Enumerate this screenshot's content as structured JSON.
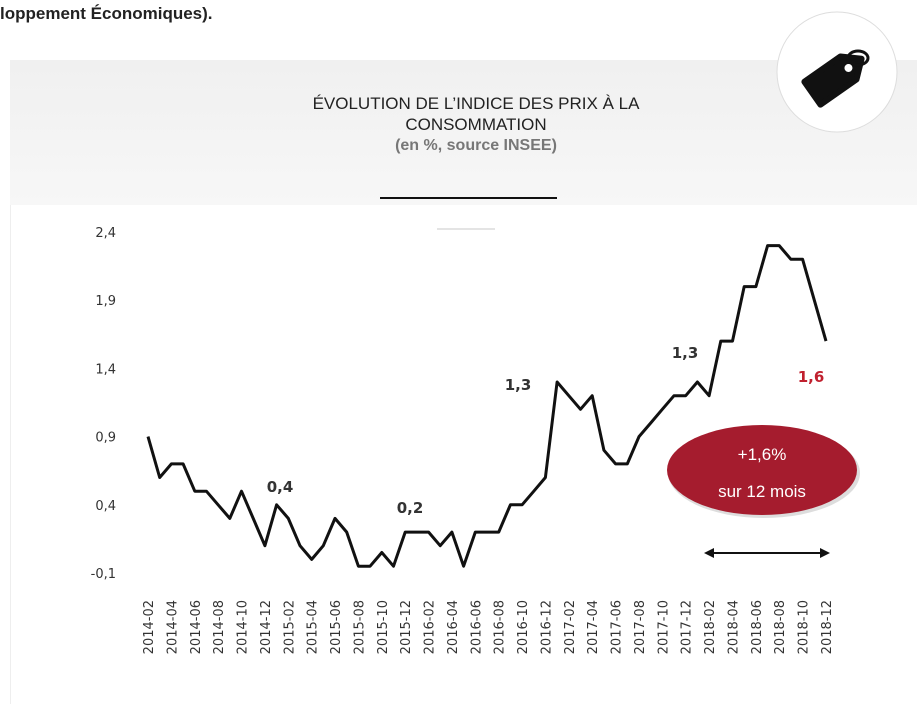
{
  "intro_text": "loppement Économiques).",
  "chart_data": {
    "type": "line",
    "title": "ÉVOLUTION DE L’INDICE DES PRIX À LA CONSOMMATION",
    "subtitle": "(en %, source INSEE)",
    "categories": [
      "2014-02",
      null,
      "2014-04",
      null,
      "2014-06",
      null,
      "2014-08",
      null,
      "2014-10",
      null,
      "2014-12",
      null,
      "2015-02",
      null,
      "2015-04",
      null,
      "2015-06",
      null,
      "2015-08",
      null,
      "2015-10",
      null,
      "2015-12",
      null,
      "2016-02",
      null,
      "2016-04",
      null,
      "2016-06",
      null,
      "2016-08",
      null,
      "2016-10",
      null,
      "2016-12",
      null,
      "2017-02",
      null,
      "2017-04",
      null,
      "2017-06",
      null,
      "2017-08",
      null,
      "2017-10",
      null,
      "2017-12",
      null,
      "2018-02",
      null,
      "2018-04",
      null,
      "2018-06",
      null,
      "2018-08",
      null,
      "2018-10",
      null,
      "2018-12"
    ],
    "values": [
      0.9,
      0.6,
      0.7,
      0.7,
      0.5,
      0.5,
      0.4,
      0.3,
      0.5,
      0.3,
      0.1,
      0.4,
      0.3,
      0.1,
      0.0,
      0.1,
      0.3,
      0.2,
      -0.05,
      -0.05,
      0.05,
      -0.05,
      0.2,
      0.2,
      0.2,
      0.1,
      0.2,
      -0.05,
      0.2,
      0.2,
      0.2,
      0.4,
      0.4,
      0.5,
      0.6,
      1.3,
      1.2,
      1.1,
      1.2,
      0.8,
      0.7,
      0.7,
      0.9,
      1.0,
      1.1,
      1.2,
      1.2,
      1.3,
      1.2,
      1.6,
      1.6,
      2.0,
      2.0,
      2.3,
      2.3,
      2.2,
      2.2,
      1.9,
      1.6
    ],
    "color": "#111111",
    "ylim": [
      -0.1,
      2.4
    ],
    "yticks": [
      {
        "value": -0.1,
        "label": "-0,1"
      },
      {
        "value": 0.4,
        "label": "0,4"
      },
      {
        "value": 0.9,
        "label": "0,9"
      },
      {
        "value": 1.4,
        "label": "1,4"
      },
      {
        "value": 1.9,
        "label": "1,9"
      },
      {
        "value": 2.4,
        "label": "2,4"
      }
    ],
    "grid": false,
    "annotations": [
      {
        "text": "0,4",
        "color": "#333333"
      },
      {
        "text": "0,2",
        "color": "#333333"
      },
      {
        "text": "1,3",
        "color": "#333333"
      },
      {
        "text": "1,3",
        "color": "#333333"
      },
      {
        "text": "1,6",
        "color": "#c0202e"
      }
    ],
    "badge": {
      "line1": "+1,6%",
      "line2": "sur 12 mois",
      "color": "#a51c2e"
    }
  }
}
